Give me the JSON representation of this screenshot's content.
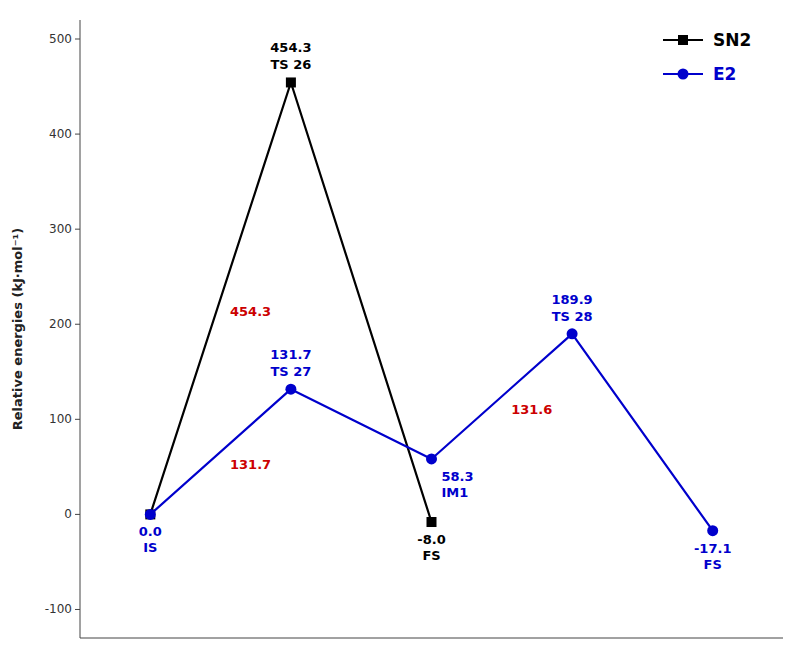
{
  "chart_data": {
    "type": "line",
    "ylabel": "Relative energies (kJ·mol⁻¹)",
    "categories": [
      null,
      null,
      null,
      null,
      null
    ],
    "ylim": [
      -130,
      520
    ],
    "yticks": [
      -100,
      0,
      100,
      200,
      300,
      400,
      500
    ],
    "tick_labels": "y",
    "grid": false,
    "legend": "upper right",
    "data_labels": true,
    "series": [
      {
        "name": "SN2",
        "color": "#000000",
        "marker": "square",
        "values": [
          0.0,
          454.3,
          -8.0,
          null,
          null
        ],
        "value_labels": [
          null,
          "454.3",
          "-8.0",
          null,
          null
        ]
      },
      {
        "name": "E2",
        "color": "#0000cc",
        "marker": "circle",
        "values": [
          0.0,
          131.7,
          58.3,
          189.9,
          -17.1
        ],
        "value_labels": [
          "0.0",
          "131.7",
          "58.3",
          "189.9",
          "-17.1"
        ]
      }
    ],
    "annotations": [
      {
        "text": "TS 26",
        "series": 0,
        "index": 1
      },
      {
        "text": "FS",
        "series": 0,
        "index": 2
      },
      {
        "text": "IS",
        "series": 1,
        "index": 0
      },
      {
        "text": "TS 27",
        "series": 1,
        "index": 1
      },
      {
        "text": "IM1",
        "series": 1,
        "index": 2
      },
      {
        "text": "TS 28",
        "series": 1,
        "index": 3
      },
      {
        "text": "FS",
        "series": 1,
        "index": 4
      },
      {
        "text": "454.3",
        "value": 454.3,
        "series": 0,
        "from": 0,
        "color": "#cc0000"
      },
      {
        "text": "131.7",
        "value": 131.7,
        "series": 1,
        "from": 0,
        "color": "#cc0000"
      },
      {
        "text": "131.6",
        "value": 131.6,
        "series": 1,
        "from": 2,
        "color": "#cc0000"
      }
    ]
  }
}
